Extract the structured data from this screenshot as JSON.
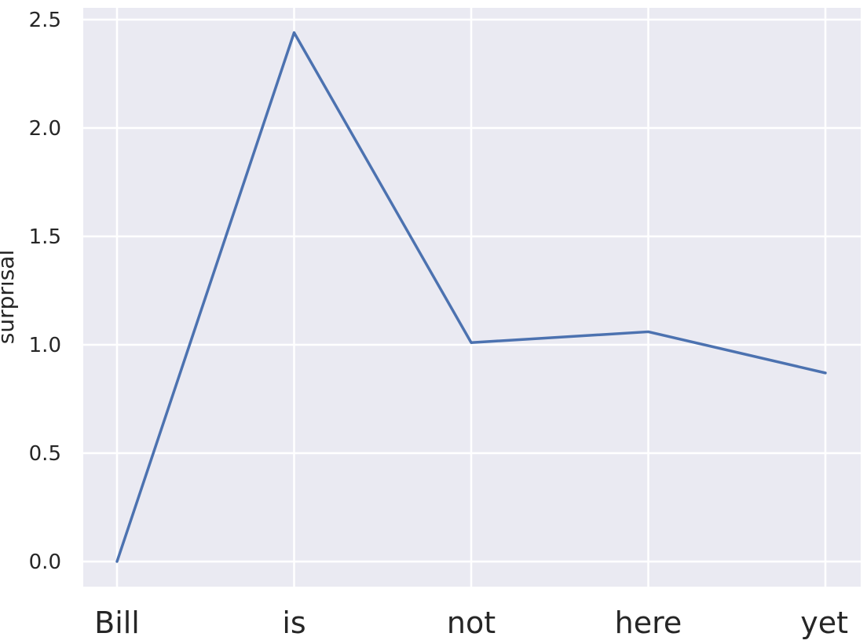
{
  "chart_data": {
    "type": "line",
    "title": "",
    "xlabel": "",
    "ylabel": "surprisal",
    "categories": [
      "Bill",
      "is",
      "not",
      "here",
      "yet"
    ],
    "series": [
      {
        "values": [
          0.0,
          2.44,
          1.01,
          1.06,
          0.87
        ]
      }
    ],
    "ylim": [
      -0.11,
      2.55
    ],
    "yticks": [
      "0.0",
      "0.5",
      "1.0",
      "1.5",
      "2.0",
      "2.5"
    ],
    "ytick_values": [
      0.0,
      0.5,
      1.0,
      1.5,
      2.0,
      2.5
    ],
    "grid": true,
    "legend": "none",
    "colors": {
      "background": "#eaeaf2",
      "grid": "#ffffff",
      "line": "#4c72b0",
      "text": "#262626"
    }
  }
}
